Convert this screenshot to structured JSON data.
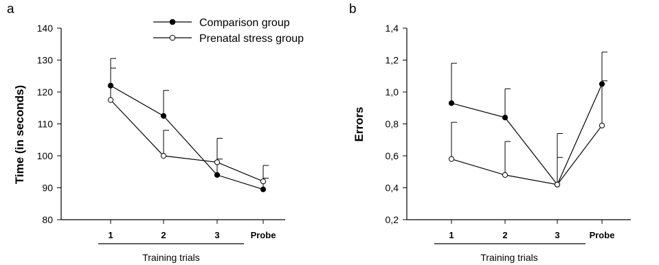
{
  "legend": {
    "comparison": "Comparison group",
    "prenatal": "Prenatal stress group"
  },
  "chart_data": [
    {
      "panel": "a",
      "type": "line",
      "ylabel": "Time (in seconds)",
      "xlabel": "",
      "group_label": "Training trials",
      "categories": [
        "1",
        "2",
        "3",
        "Probe"
      ],
      "ylim": [
        80,
        140
      ],
      "yticks": [
        80,
        90,
        100,
        110,
        120,
        130,
        140
      ],
      "grid": false,
      "legend_position": "top",
      "series": [
        {
          "name": "Comparison group",
          "marker": "filled",
          "values": [
            122,
            112.5,
            94,
            89.5
          ],
          "error_upper": [
            130.5,
            120.5,
            105.5,
            97
          ]
        },
        {
          "name": "Prenatal stress group",
          "marker": "open",
          "values": [
            117.5,
            100,
            98,
            92
          ],
          "error_upper": [
            127.5,
            108,
            99,
            93
          ]
        }
      ]
    },
    {
      "panel": "b",
      "type": "line",
      "ylabel": "Errors",
      "xlabel": "",
      "group_label": "Training trials",
      "categories": [
        "1",
        "2",
        "3",
        "Probe"
      ],
      "ylim": [
        0.2,
        1.4
      ],
      "yticks": [
        "0,2",
        "0,4",
        "0,6",
        "0,8",
        "1,0",
        "1,2",
        "1,4"
      ],
      "grid": false,
      "series": [
        {
          "name": "Comparison group",
          "marker": "filled",
          "values": [
            0.93,
            0.84,
            0.42,
            1.05
          ],
          "error_upper": [
            1.18,
            1.02,
            0.74,
            1.07
          ]
        },
        {
          "name": "Prenatal stress group",
          "marker": "open",
          "values": [
            0.58,
            0.48,
            0.42,
            0.79
          ],
          "error_upper": [
            0.81,
            0.69,
            0.59,
            1.25
          ]
        }
      ]
    }
  ]
}
